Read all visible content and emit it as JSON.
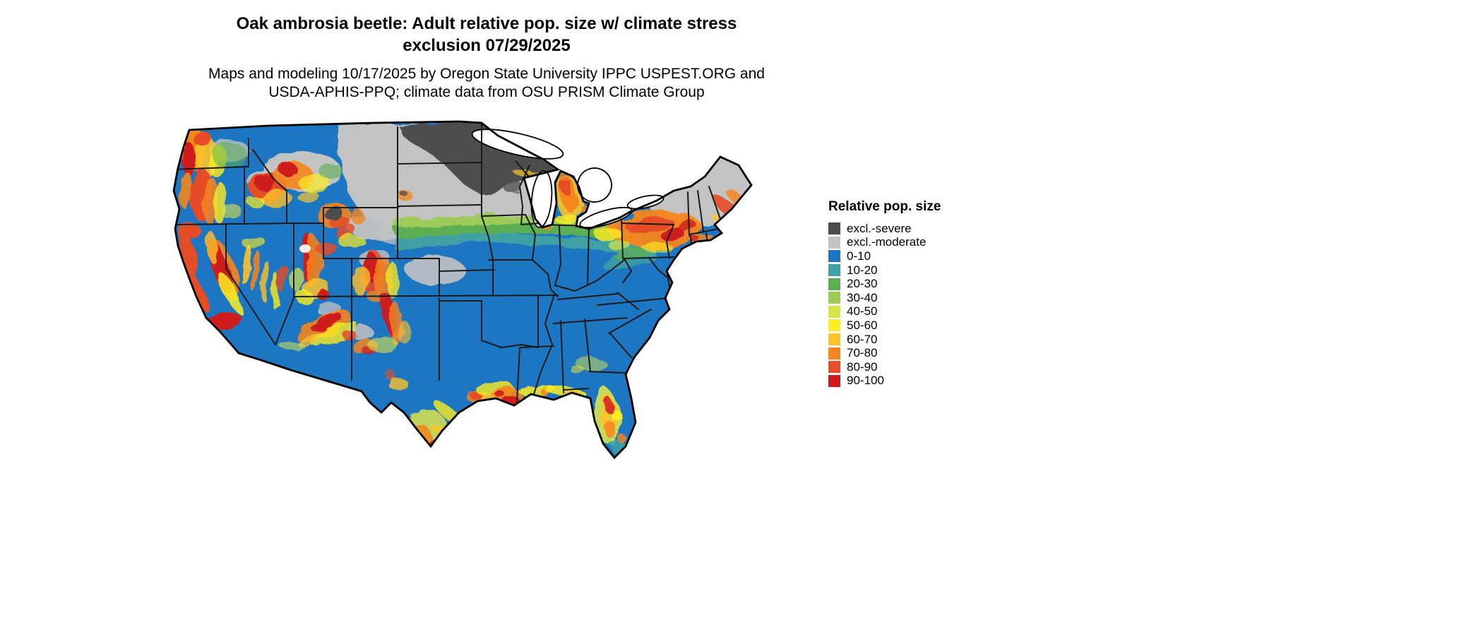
{
  "title": {
    "line1": "Oak ambrosia beetle: Adult relative pop. size w/ climate stress",
    "line2": "exclusion 07/29/2025"
  },
  "subtitle": {
    "line1": "Maps and modeling 10/17/2025 by Oregon State University IPPC USPEST.ORG and",
    "line2": "USDA-APHIS-PPQ; climate data from OSU PRISM Climate Group"
  },
  "legend": {
    "title": "Relative pop. size",
    "items": [
      {
        "key": "excl_severe",
        "label": "excl.-severe",
        "color": "#4d4d4d"
      },
      {
        "key": "excl_moderate",
        "label": "excl.-moderate",
        "color": "#c3c3c3"
      },
      {
        "key": "p0_10",
        "label": "0-10",
        "color": "#1d76c2"
      },
      {
        "key": "p10_20",
        "label": "10-20",
        "color": "#41a0a4"
      },
      {
        "key": "p20_30",
        "label": "20-30",
        "color": "#5dae52"
      },
      {
        "key": "p30_40",
        "label": "30-40",
        "color": "#9ccb5a"
      },
      {
        "key": "p40_50",
        "label": "40-50",
        "color": "#d9e44c"
      },
      {
        "key": "p50_60",
        "label": "50-60",
        "color": "#fbee22"
      },
      {
        "key": "p60_70",
        "label": "60-70",
        "color": "#fcc32c"
      },
      {
        "key": "p70_80",
        "label": "70-80",
        "color": "#f5861f"
      },
      {
        "key": "p80_90",
        "label": "80-90",
        "color": "#e54e28"
      },
      {
        "key": "p90_100",
        "label": "90-100",
        "color": "#cf1b1e"
      }
    ]
  },
  "map": {
    "region": "Continental United States",
    "water_color": "#ffffff",
    "outline_color": "#000000",
    "state_border_color": "#1a1a1a"
  }
}
